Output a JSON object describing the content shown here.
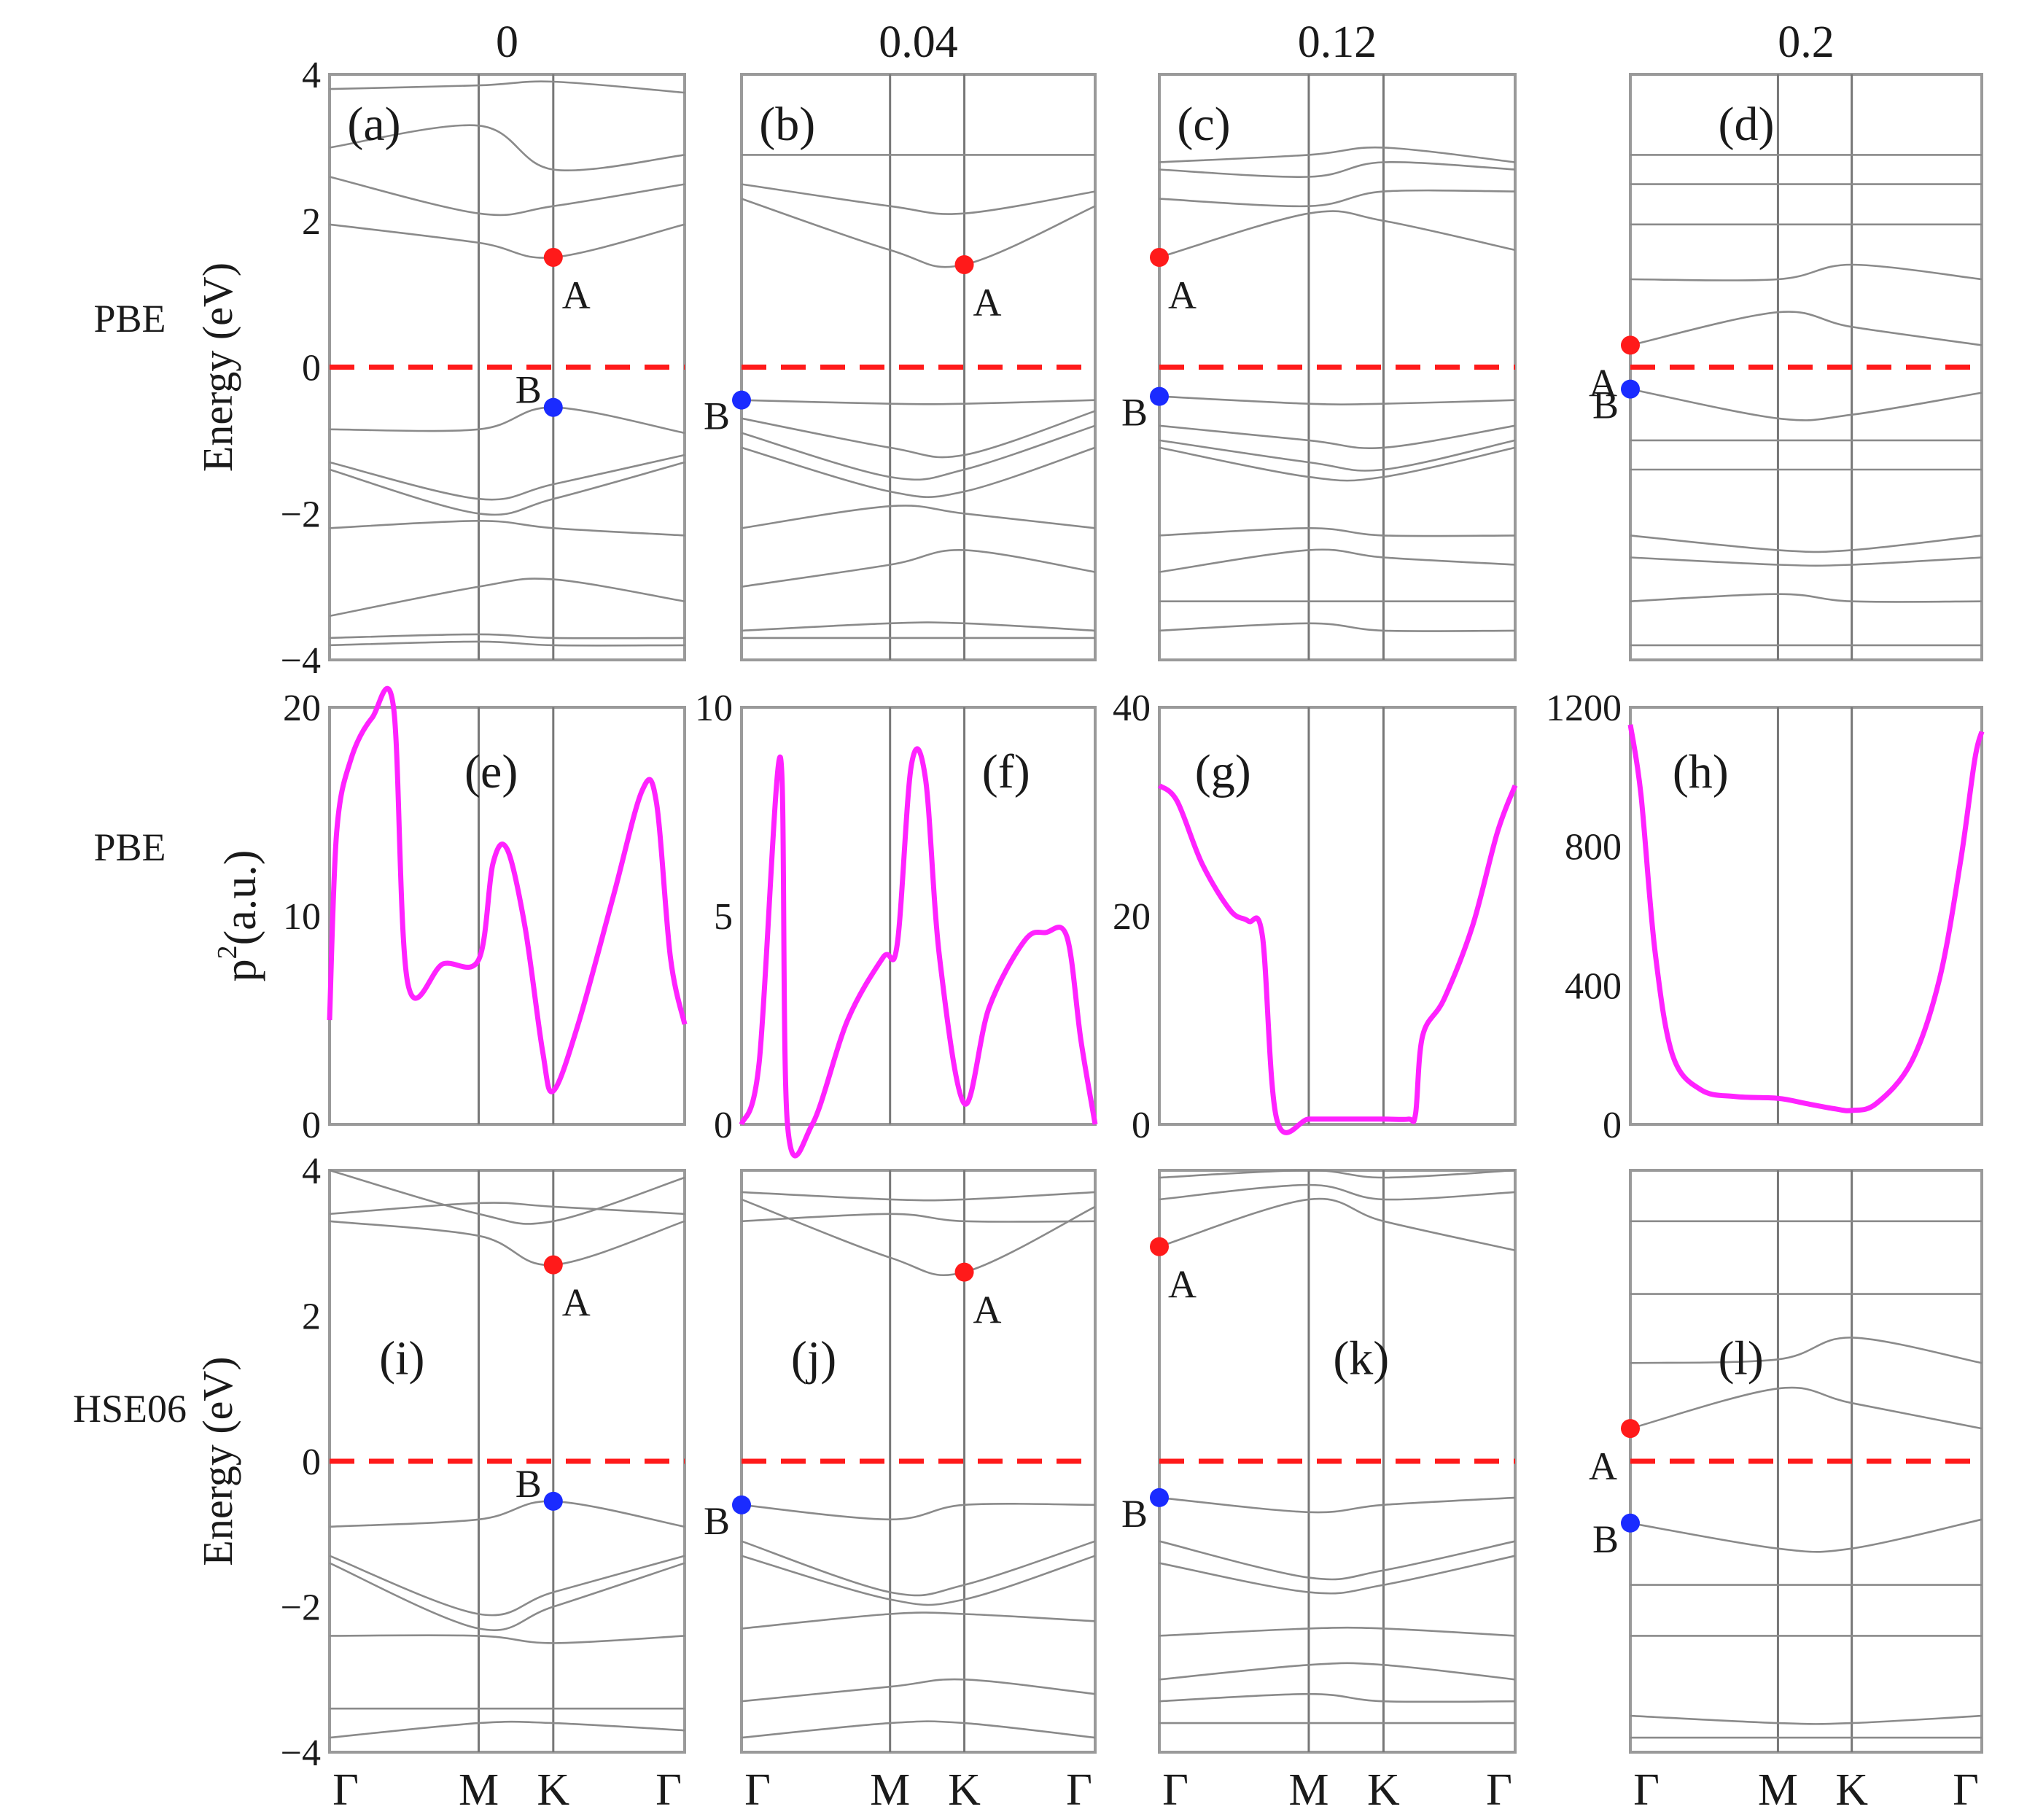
{
  "chart_data": {
    "type": "line",
    "column_titles": [
      "0",
      "0.04",
      "0.12",
      "0.2"
    ],
    "row_labels": [
      "PBE",
      "PBE",
      "HSE06"
    ],
    "ylabels": {
      "band": "Energy (eV)",
      "p2": "p2(a.u.)",
      "p2_base": "p",
      "p2_sup": "2",
      "p2_unit": "(a.u.)"
    },
    "kpoints": [
      "Γ",
      "M",
      "K",
      "Γ"
    ],
    "kpoint_pos": [
      0,
      0.42,
      0.63,
      1
    ],
    "fermi_level": 0,
    "colors": {
      "fermi": "#ff1a1a",
      "A": "#ff1a1a",
      "B": "#1a2bff",
      "p2": "#ff22ff",
      "bands": "#8a8a8a"
    },
    "band_panels": [
      {
        "label": "(a)",
        "method": "PBE",
        "column": 0,
        "ylim": [
          -4,
          4
        ],
        "yticks": [
          "4",
          "2",
          "0",
          "−2",
          "−4"
        ],
        "yticks_values": [
          4,
          2,
          0,
          -2,
          -4
        ],
        "A": {
          "label": "A",
          "k": 0.63,
          "E": 1.5
        },
        "B": {
          "label": "B",
          "k": 0.63,
          "E": -0.55
        },
        "bands": [
          [
            3.8,
            3.85,
            3.9,
            3.75
          ],
          [
            2.6,
            2.1,
            2.2,
            2.5
          ],
          [
            1.95,
            1.7,
            1.5,
            1.95
          ],
          [
            3.0,
            3.3,
            2.7,
            2.9
          ],
          [
            -0.85,
            -0.85,
            -0.55,
            -0.9
          ],
          [
            -1.3,
            -1.8,
            -1.6,
            -1.2
          ],
          [
            -1.4,
            -2.0,
            -1.8,
            -1.3
          ],
          [
            -2.2,
            -2.1,
            -2.2,
            -2.3
          ],
          [
            -3.4,
            -3.0,
            -2.9,
            -3.2
          ],
          [
            -3.7,
            -3.65,
            -3.7,
            -3.7
          ],
          [
            -3.8,
            -3.75,
            -3.8,
            -3.8
          ]
        ]
      },
      {
        "label": "(b)",
        "method": "PBE",
        "column": 1,
        "ylim": [
          -4,
          4
        ],
        "yticks": [],
        "yticks_values": [],
        "A": {
          "label": "A",
          "k": 0.63,
          "E": 1.4
        },
        "B": {
          "label": "B",
          "k": 0,
          "E": -0.45
        },
        "bands": [
          [
            2.3,
            1.6,
            1.4,
            2.2
          ],
          [
            2.5,
            2.2,
            2.1,
            2.4
          ],
          [
            2.9,
            2.9,
            2.9,
            2.9
          ],
          [
            -0.45,
            -0.5,
            -0.5,
            -0.45
          ],
          [
            -0.7,
            -1.1,
            -1.2,
            -0.6
          ],
          [
            -0.9,
            -1.5,
            -1.4,
            -0.8
          ],
          [
            -1.1,
            -1.7,
            -1.7,
            -1.1
          ],
          [
            -2.2,
            -1.9,
            -2.0,
            -2.2
          ],
          [
            -3.0,
            -2.7,
            -2.5,
            -2.8
          ],
          [
            -3.6,
            -3.5,
            -3.5,
            -3.6
          ],
          [
            -3.7,
            -3.7,
            -3.7,
            -3.7
          ]
        ]
      },
      {
        "label": "(c)",
        "method": "PBE",
        "column": 2,
        "ylim": [
          -4,
          4
        ],
        "yticks": [],
        "yticks_values": [],
        "A": {
          "label": "A",
          "k": 0,
          "E": 1.5
        },
        "B": {
          "label": "B",
          "k": 0,
          "E": -0.4
        },
        "bands": [
          [
            1.5,
            2.1,
            2.0,
            1.6
          ],
          [
            2.3,
            2.2,
            2.4,
            2.4
          ],
          [
            2.8,
            2.9,
            3.0,
            2.8
          ],
          [
            2.7,
            2.6,
            2.8,
            2.7
          ],
          [
            -0.4,
            -0.5,
            -0.5,
            -0.45
          ],
          [
            -0.8,
            -1.0,
            -1.1,
            -0.8
          ],
          [
            -1.0,
            -1.3,
            -1.4,
            -1.0
          ],
          [
            -1.1,
            -1.5,
            -1.5,
            -1.1
          ],
          [
            -2.3,
            -2.2,
            -2.3,
            -2.3
          ],
          [
            -2.8,
            -2.5,
            -2.6,
            -2.7
          ],
          [
            -3.2,
            -3.2,
            -3.2,
            -3.2
          ],
          [
            -3.6,
            -3.5,
            -3.6,
            -3.6
          ]
        ]
      },
      {
        "label": "(d)",
        "method": "PBE",
        "column": 3,
        "ylim": [
          -4,
          4
        ],
        "yticks": [],
        "yticks_values": [],
        "A": {
          "label": "A",
          "k": 0,
          "E": 0.3
        },
        "B": {
          "label": "B",
          "k": 0,
          "E": -0.3
        },
        "bands": [
          [
            0.3,
            0.75,
            0.55,
            0.3
          ],
          [
            -0.3,
            -0.7,
            -0.65,
            -0.35
          ],
          [
            1.2,
            1.2,
            1.4,
            1.2
          ],
          [
            1.95,
            1.95,
            1.95,
            1.95
          ],
          [
            2.5,
            2.5,
            2.5,
            2.5
          ],
          [
            2.9,
            2.9,
            2.9,
            2.9
          ],
          [
            -1.0,
            -1.0,
            -1.0,
            -1.0
          ],
          [
            -1.4,
            -1.4,
            -1.4,
            -1.4
          ],
          [
            -2.3,
            -2.5,
            -2.5,
            -2.3
          ],
          [
            -2.6,
            -2.7,
            -2.7,
            -2.6
          ],
          [
            -3.2,
            -3.1,
            -3.2,
            -3.2
          ],
          [
            -3.8,
            -3.8,
            -3.8,
            -3.8
          ]
        ]
      },
      {
        "label": "(i)",
        "method": "HSE06",
        "column": 0,
        "ylim": [
          -4,
          4
        ],
        "yticks": [
          "4",
          "2",
          "0",
          "−2",
          "−4"
        ],
        "yticks_values": [
          4,
          2,
          0,
          -2,
          -4
        ],
        "A": {
          "label": "A",
          "k": 0.63,
          "E": 2.7
        },
        "B": {
          "label": "B",
          "k": 0.63,
          "E": -0.55
        },
        "bands": [
          [
            4.0,
            3.4,
            3.3,
            3.9
          ],
          [
            3.3,
            3.1,
            2.7,
            3.3
          ],
          [
            3.4,
            3.55,
            3.5,
            3.4
          ],
          [
            -0.9,
            -0.8,
            -0.55,
            -0.9
          ],
          [
            -1.3,
            -2.1,
            -1.8,
            -1.3
          ],
          [
            -1.4,
            -2.3,
            -2.0,
            -1.4
          ],
          [
            -2.4,
            -2.4,
            -2.5,
            -2.4
          ],
          [
            -3.4,
            -3.4,
            -3.4,
            -3.4
          ],
          [
            -3.8,
            -3.6,
            -3.6,
            -3.7
          ]
        ]
      },
      {
        "label": "(j)",
        "method": "HSE06",
        "column": 1,
        "ylim": [
          -4,
          4
        ],
        "yticks": [],
        "yticks_values": [],
        "A": {
          "label": "A",
          "k": 0.63,
          "E": 2.6
        },
        "B": {
          "label": "B",
          "k": 0,
          "E": -0.6
        },
        "bands": [
          [
            3.6,
            2.8,
            2.6,
            3.5
          ],
          [
            3.3,
            3.4,
            3.3,
            3.3
          ],
          [
            3.7,
            3.6,
            3.6,
            3.7
          ],
          [
            -0.6,
            -0.8,
            -0.6,
            -0.6
          ],
          [
            -1.1,
            -1.8,
            -1.7,
            -1.1
          ],
          [
            -1.3,
            -1.9,
            -1.9,
            -1.3
          ],
          [
            -2.3,
            -2.1,
            -2.1,
            -2.2
          ],
          [
            -3.3,
            -3.1,
            -3.0,
            -3.2
          ],
          [
            -3.8,
            -3.6,
            -3.6,
            -3.8
          ]
        ]
      },
      {
        "label": "(k)",
        "method": "HSE06",
        "column": 2,
        "ylim": [
          -4,
          4
        ],
        "yticks": [],
        "yticks_values": [],
        "A": {
          "label": "A",
          "k": 0,
          "E": 2.95
        },
        "B": {
          "label": "B",
          "k": 0,
          "E": -0.5
        },
        "bands": [
          [
            2.95,
            3.6,
            3.3,
            2.9
          ],
          [
            3.6,
            3.8,
            3.6,
            3.7
          ],
          [
            3.9,
            4.0,
            3.9,
            4.0
          ],
          [
            -0.5,
            -0.7,
            -0.6,
            -0.5
          ],
          [
            -1.1,
            -1.6,
            -1.5,
            -1.1
          ],
          [
            -1.4,
            -1.8,
            -1.7,
            -1.3
          ],
          [
            -2.4,
            -2.3,
            -2.3,
            -2.4
          ],
          [
            -3.0,
            -2.8,
            -2.8,
            -3.0
          ],
          [
            -3.3,
            -3.2,
            -3.3,
            -3.3
          ],
          [
            -3.6,
            -3.6,
            -3.6,
            -3.6
          ]
        ]
      },
      {
        "label": "(l)",
        "method": "HSE06",
        "column": 3,
        "ylim": [
          -4,
          4
        ],
        "yticks": [],
        "yticks_values": [],
        "A": {
          "label": "A",
          "k": 0,
          "E": 0.45
        },
        "B": {
          "label": "B",
          "k": 0,
          "E": -0.85
        },
        "bands": [
          [
            0.45,
            1.0,
            0.8,
            0.45
          ],
          [
            -0.85,
            -1.2,
            -1.2,
            -0.8
          ],
          [
            1.35,
            1.4,
            1.7,
            1.35
          ],
          [
            2.3,
            2.3,
            2.3,
            2.3
          ],
          [
            3.3,
            3.3,
            3.3,
            3.3
          ],
          [
            -1.7,
            -1.7,
            -1.7,
            -1.7
          ],
          [
            -2.4,
            -2.4,
            -2.4,
            -2.4
          ],
          [
            -3.5,
            -3.6,
            -3.6,
            -3.5
          ],
          [
            -3.8,
            -3.8,
            -3.8,
            -3.8
          ]
        ]
      }
    ],
    "p2_panels": [
      {
        "label": "(e)",
        "column": 0,
        "ylim": [
          0,
          20
        ],
        "yticks": [
          "20",
          "10",
          "0"
        ],
        "yticks_values": [
          20,
          10,
          0
        ],
        "k": [
          0,
          0.02,
          0.06,
          0.12,
          0.18,
          0.22,
          0.32,
          0.42,
          0.46,
          0.5,
          0.55,
          0.6,
          0.63,
          0.7,
          0.8,
          0.88,
          0.92,
          0.96,
          1
        ],
        "values": [
          5,
          14,
          17.5,
          19.5,
          20,
          6.8,
          7.7,
          7.9,
          12.5,
          13.2,
          9.5,
          3.5,
          1.6,
          4.8,
          11,
          16,
          15.5,
          8,
          4.8
        ]
      },
      {
        "label": "(f)",
        "column": 1,
        "ylim": [
          0,
          10
        ],
        "yticks": [
          "10",
          "5",
          "0"
        ],
        "yticks_values": [
          10,
          5,
          0
        ],
        "k": [
          0,
          0.05,
          0.11,
          0.13,
          0.2,
          0.3,
          0.4,
          0.44,
          0.48,
          0.52,
          0.56,
          0.63,
          0.7,
          0.8,
          0.86,
          0.92,
          0.96,
          1
        ],
        "values": [
          0,
          1.5,
          8.8,
          0,
          0,
          2.5,
          4.0,
          4.3,
          8.6,
          8.3,
          4.0,
          0.5,
          2.8,
          4.4,
          4.6,
          4.5,
          2.0,
          0
        ]
      },
      {
        "label": "(g)",
        "column": 2,
        "ylim": [
          0,
          40
        ],
        "yticks": [
          "40",
          "20",
          "0"
        ],
        "yticks_values": [
          40,
          20,
          0
        ],
        "k": [
          0,
          0.05,
          0.12,
          0.2,
          0.25,
          0.29,
          0.33,
          0.42,
          0.5,
          0.63,
          0.7,
          0.72,
          0.74,
          0.8,
          0.88,
          0.95,
          1
        ],
        "values": [
          32.5,
          31,
          25,
          20.5,
          19.5,
          18,
          0.5,
          0.5,
          0.5,
          0.5,
          0.5,
          1,
          8.5,
          12,
          19,
          28,
          32.5
        ]
      },
      {
        "label": "(h)",
        "column": 3,
        "ylim": [
          0,
          1200
        ],
        "yticks": [
          "1200",
          "800",
          "400",
          "0"
        ],
        "yticks_values": [
          1200,
          800,
          400,
          0
        ],
        "k": [
          0,
          0.03,
          0.07,
          0.12,
          0.2,
          0.3,
          0.42,
          0.5,
          0.58,
          0.63,
          0.7,
          0.8,
          0.88,
          0.94,
          0.98,
          1
        ],
        "values": [
          1150,
          950,
          500,
          200,
          100,
          80,
          75,
          60,
          45,
          40,
          60,
          180,
          420,
          760,
          1050,
          1130
        ]
      }
    ]
  }
}
